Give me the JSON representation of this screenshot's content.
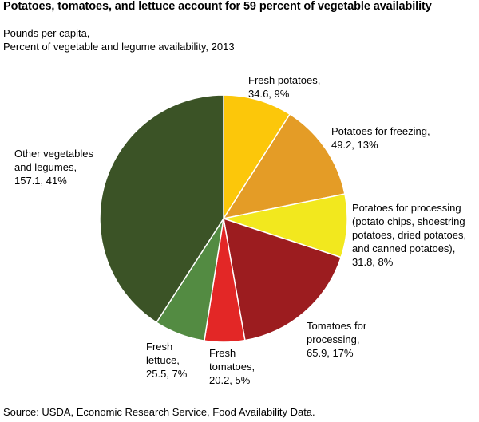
{
  "title": "Potatoes, tomatoes, and lettuce account for 59 percent of vegetable availability",
  "subtitle_line1": "Pounds per capita,",
  "subtitle_line2": "Percent of vegetable and legume availability, 2013",
  "source": "Source: USDA, Economic Research Service, Food Availability Data.",
  "chart_data": {
    "type": "pie",
    "unit": "Pounds per capita",
    "slices": [
      {
        "label": "Fresh potatoes,\n34.6, 9%",
        "name": "Fresh potatoes",
        "value": 34.6,
        "percent": 9,
        "color": "#fcc70a"
      },
      {
        "label": "Potatoes for freezing,\n49.2, 13%",
        "name": "Potatoes for freezing",
        "value": 49.2,
        "percent": 13,
        "color": "#e49c26"
      },
      {
        "label": "Potatoes for processing\n(potato chips, shoestring\npotatoes, dried potatoes,\nand canned potatoes),\n31.8, 8%",
        "name": "Potatoes for processing",
        "value": 31.8,
        "percent": 8,
        "color": "#f2e81e"
      },
      {
        "label": "Tomatoes for\nprocessing,\n65.9, 17%",
        "name": "Tomatoes for processing",
        "value": 65.9,
        "percent": 17,
        "color": "#9c1c1f"
      },
      {
        "label": "Fresh\ntomatoes,\n20.2, 5%",
        "name": "Fresh tomatoes",
        "value": 20.2,
        "percent": 5,
        "color": "#e32726"
      },
      {
        "label": "Fresh\nlettuce,\n25.5, 7%",
        "name": "Fresh lettuce",
        "value": 25.5,
        "percent": 7,
        "color": "#538b42"
      },
      {
        "label": "Other vegetables\nand legumes,\n157.1, 41%",
        "name": "Other vegetables and legumes",
        "value": 157.1,
        "percent": 41,
        "color": "#3b5326"
      }
    ]
  }
}
